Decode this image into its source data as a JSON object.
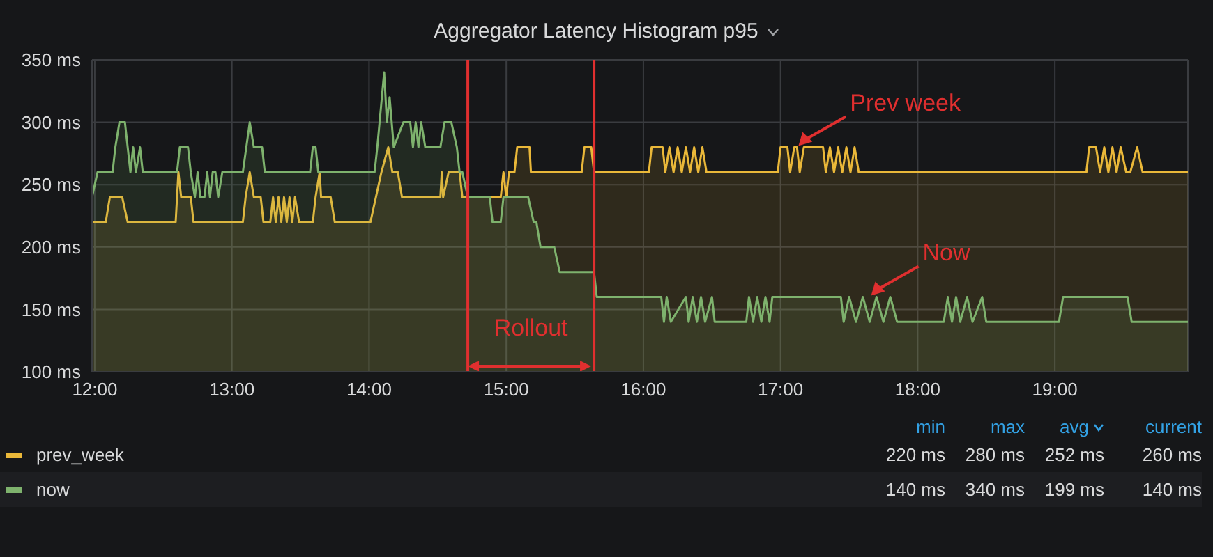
{
  "chart_data": {
    "type": "area",
    "title": "Aggregator Latency Histogram p95",
    "xlim": [
      11.98,
      19.97
    ],
    "xticks": [
      {
        "value": 12,
        "label": "12:00"
      },
      {
        "value": 13,
        "label": "13:00"
      },
      {
        "value": 14,
        "label": "14:00"
      },
      {
        "value": 15,
        "label": "15:00"
      },
      {
        "value": 16,
        "label": "16:00"
      },
      {
        "value": 17,
        "label": "17:00"
      },
      {
        "value": 18,
        "label": "18:00"
      },
      {
        "value": 19,
        "label": "19:00"
      }
    ],
    "ylim": [
      100,
      350
    ],
    "yticks": [
      {
        "value": 100,
        "label": "100 ms"
      },
      {
        "value": 150,
        "label": "150 ms"
      },
      {
        "value": 200,
        "label": "200 ms"
      },
      {
        "value": 250,
        "label": "250 ms"
      },
      {
        "value": 300,
        "label": "300 ms"
      },
      {
        "value": 350,
        "label": "350 ms"
      }
    ],
    "grid": true,
    "legend": "bottom",
    "marker": "none",
    "line_style": "solid",
    "series": [
      {
        "name": "prev_week",
        "color": "#eab839",
        "x": [
          11.98,
          12.08,
          12.11,
          12.2,
          12.24,
          12.59,
          12.6,
          12.61,
          12.63,
          12.7,
          12.72,
          13.08,
          13.1,
          13.13,
          13.16,
          13.21,
          13.23,
          13.28,
          13.3,
          13.32,
          13.34,
          13.36,
          13.38,
          13.4,
          13.42,
          13.44,
          13.46,
          13.49,
          13.59,
          13.61,
          13.64,
          13.65,
          13.72,
          13.75,
          14.01,
          14.05,
          14.09,
          14.14,
          14.17,
          14.21,
          14.24,
          14.52,
          14.53,
          14.54,
          14.58,
          14.66,
          14.68,
          14.96,
          14.98,
          15.0,
          15.02,
          15.06,
          15.08,
          15.17,
          15.18,
          15.55,
          15.57,
          15.62,
          15.64,
          16.04,
          16.06,
          16.14,
          16.16,
          16.19,
          16.22,
          16.25,
          16.28,
          16.31,
          16.34,
          16.37,
          16.4,
          16.43,
          16.46,
          16.98,
          17.0,
          17.05,
          17.07,
          17.1,
          17.12,
          17.14,
          17.17,
          17.31,
          17.33,
          17.36,
          17.39,
          17.42,
          17.45,
          17.48,
          17.51,
          17.54,
          17.57,
          17.6,
          19.23,
          19.25,
          19.3,
          19.33,
          19.36,
          19.39,
          19.42,
          19.45,
          19.48,
          19.52,
          19.55,
          19.6,
          19.64,
          19.69,
          19.97
        ],
        "values": [
          220,
          220,
          240,
          240,
          220,
          220,
          240,
          260,
          240,
          240,
          220,
          220,
          240,
          260,
          240,
          240,
          220,
          220,
          240,
          220,
          240,
          220,
          240,
          220,
          240,
          220,
          240,
          220,
          220,
          240,
          260,
          240,
          240,
          220,
          220,
          240,
          260,
          280,
          260,
          260,
          240,
          240,
          260,
          240,
          260,
          260,
          240,
          240,
          260,
          240,
          260,
          260,
          280,
          280,
          260,
          260,
          280,
          280,
          260,
          260,
          280,
          280,
          260,
          280,
          260,
          280,
          260,
          280,
          260,
          280,
          260,
          280,
          260,
          260,
          280,
          280,
          260,
          280,
          280,
          260,
          280,
          280,
          260,
          280,
          260,
          280,
          260,
          280,
          260,
          280,
          260,
          260,
          260,
          280,
          280,
          260,
          280,
          260,
          280,
          260,
          280,
          260,
          260,
          280,
          260,
          260,
          260
        ]
      },
      {
        "name": "now",
        "color": "#7eb26d",
        "x": [
          11.98,
          12.02,
          12.13,
          12.15,
          12.18,
          12.22,
          12.24,
          12.26,
          12.28,
          12.3,
          12.33,
          12.35,
          12.6,
          12.62,
          12.68,
          12.7,
          12.73,
          12.75,
          12.77,
          12.8,
          12.82,
          12.84,
          12.86,
          12.88,
          12.9,
          12.93,
          13.08,
          13.13,
          13.16,
          13.22,
          13.24,
          13.57,
          13.59,
          13.61,
          13.63,
          14.04,
          14.06,
          14.11,
          14.13,
          14.15,
          14.18,
          14.25,
          14.3,
          14.32,
          14.34,
          14.36,
          14.38,
          14.41,
          14.46,
          14.52,
          14.55,
          14.6,
          14.64,
          14.66,
          14.68,
          14.72,
          14.88,
          14.9,
          14.96,
          14.98,
          15.16,
          15.2,
          15.22,
          15.25,
          15.35,
          15.39,
          15.64,
          15.66,
          16.13,
          16.15,
          16.17,
          16.2,
          16.31,
          16.33,
          16.36,
          16.39,
          16.42,
          16.45,
          16.5,
          16.52,
          16.75,
          16.77,
          16.8,
          16.83,
          16.86,
          16.89,
          16.92,
          16.94,
          16.98,
          17.44,
          17.46,
          17.5,
          17.55,
          17.6,
          17.65,
          17.7,
          17.75,
          17.8,
          17.85,
          17.88,
          18.19,
          18.22,
          18.25,
          18.28,
          18.31,
          18.36,
          18.4,
          18.47,
          18.5,
          19.03,
          19.06,
          19.53,
          19.56,
          19.97
        ],
        "values": [
          240,
          260,
          260,
          280,
          300,
          300,
          280,
          260,
          280,
          260,
          280,
          260,
          260,
          280,
          280,
          260,
          240,
          260,
          240,
          240,
          260,
          240,
          260,
          260,
          240,
          260,
          260,
          300,
          280,
          280,
          260,
          260,
          280,
          280,
          260,
          260,
          280,
          340,
          300,
          320,
          280,
          300,
          300,
          280,
          300,
          280,
          300,
          280,
          280,
          280,
          300,
          300,
          280,
          260,
          260,
          240,
          240,
          220,
          220,
          240,
          240,
          220,
          220,
          200,
          200,
          180,
          180,
          160,
          160,
          140,
          160,
          140,
          160,
          140,
          160,
          140,
          160,
          140,
          160,
          140,
          140,
          160,
          140,
          160,
          140,
          160,
          140,
          160,
          160,
          160,
          140,
          160,
          140,
          160,
          140,
          160,
          140,
          160,
          140,
          140,
          140,
          160,
          140,
          160,
          140,
          160,
          140,
          160,
          140,
          140,
          160,
          160,
          140,
          140
        ]
      }
    ],
    "ref_lines": [
      {
        "axis": "x",
        "value": 14.72,
        "label": "Rollout",
        "color": "#e02f2f"
      },
      {
        "axis": "x",
        "value": 15.64,
        "color": "#e02f2f"
      }
    ],
    "annotations": [
      {
        "text": "Prev week",
        "x": 17.12,
        "y": 280
      },
      {
        "text": "Now",
        "x": 17.65,
        "y": 160
      },
      "min",
      "max",
      "avg",
      "current",
      "220 ms",
      "280 ms",
      "252 ms",
      "260 ms",
      "140 ms",
      "340 ms",
      "199 ms",
      "140 ms"
    ]
  }
}
